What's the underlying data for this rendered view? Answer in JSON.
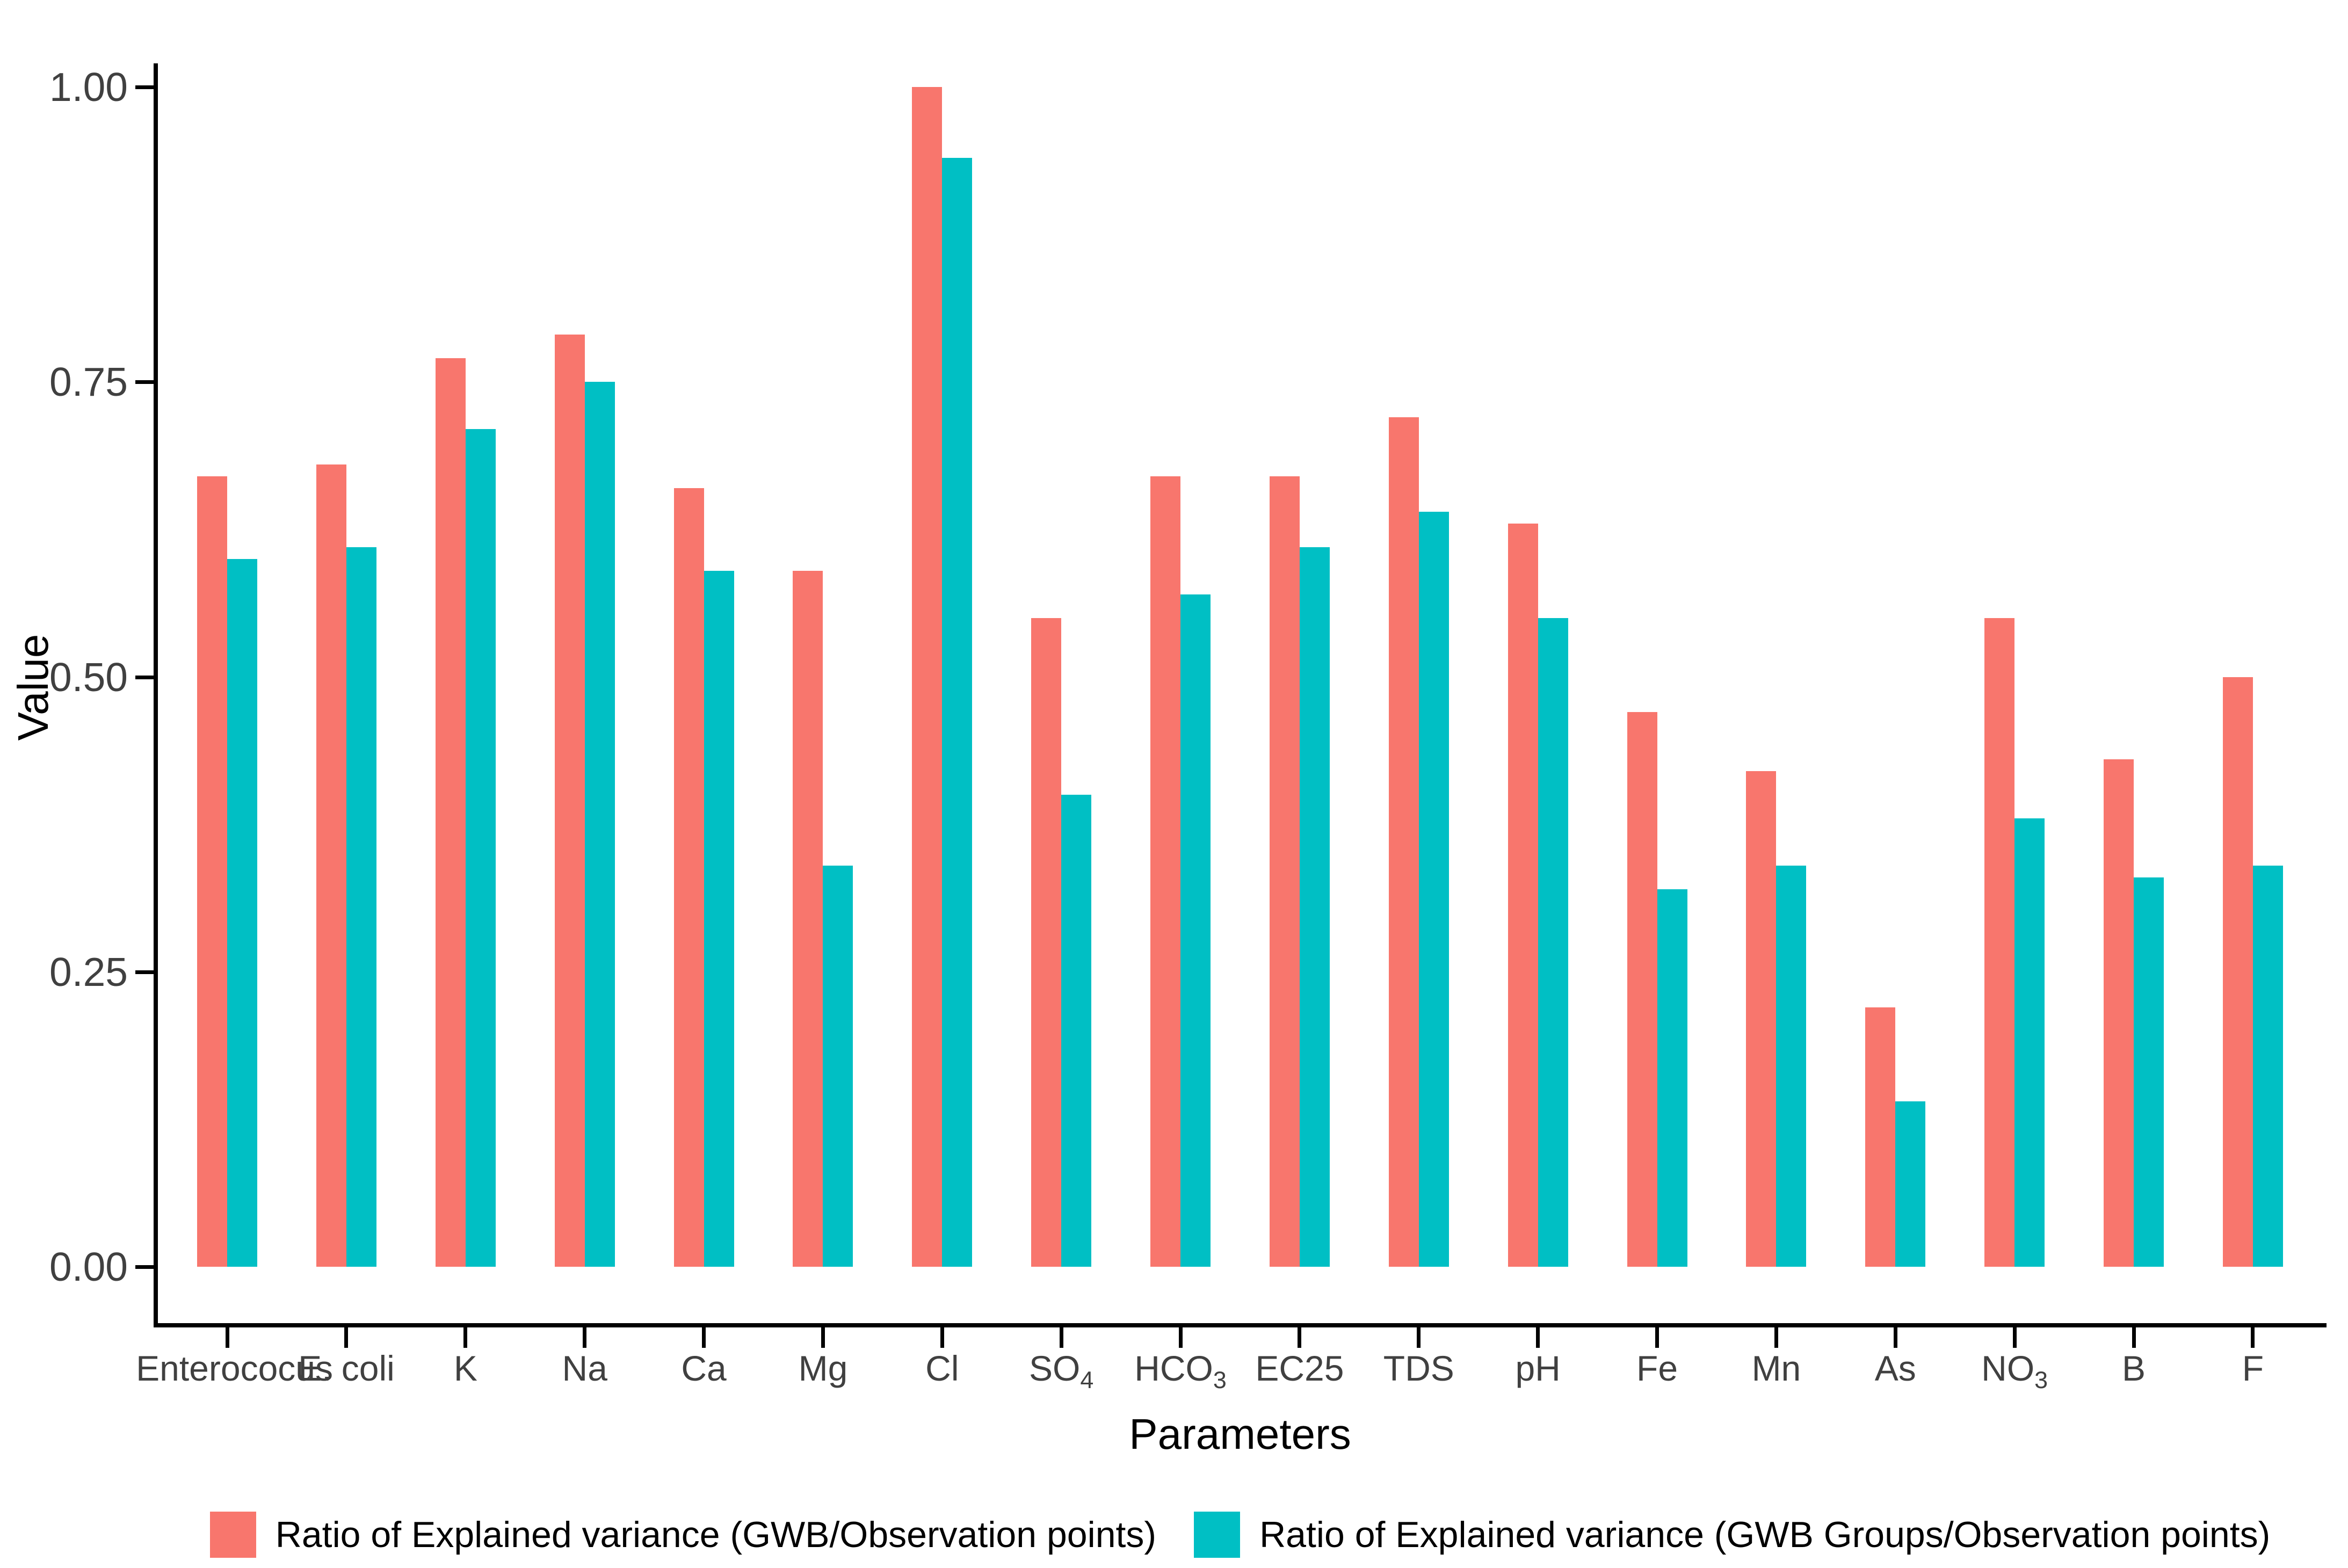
{
  "figure": {
    "background": "#ffffff",
    "axis_line_color": "#000000",
    "tick_text_color": "#404040",
    "title_text_color": "#000000"
  },
  "chart_data": {
    "type": "bar",
    "title": "",
    "xlabel": "Parameters",
    "ylabel": "Value",
    "ylim": [
      0,
      1.0
    ],
    "yticks": [
      {
        "label": "0.00",
        "value": 0.0
      },
      {
        "label": "0.25",
        "value": 0.25
      },
      {
        "label": "0.50",
        "value": 0.5
      },
      {
        "label": "0.75",
        "value": 0.75
      },
      {
        "label": "1.00",
        "value": 1.0
      }
    ],
    "categories": [
      "Enterococus",
      "E. coli",
      "K",
      "Na",
      "Ca",
      "Mg",
      "Cl",
      "SO_4",
      "HCO_3",
      "EC25",
      "TDS",
      "pH",
      "Fe",
      "Mn",
      "As",
      "NO_3",
      "B",
      "F"
    ],
    "series": [
      {
        "name": "Ratio of Explained variance (GWB/Observation points)",
        "color": "#F8766D",
        "values": [
          0.67,
          0.68,
          0.77,
          0.79,
          0.66,
          0.59,
          1.0,
          0.55,
          0.67,
          0.67,
          0.72,
          0.63,
          0.47,
          0.42,
          0.22,
          0.55,
          0.43,
          0.5
        ]
      },
      {
        "name": "Ratio of Explained variance (GWB Groups/Observation points)",
        "color": "#00BFC4",
        "values": [
          0.6,
          0.61,
          0.71,
          0.75,
          0.59,
          0.34,
          0.94,
          0.4,
          0.57,
          0.61,
          0.64,
          0.55,
          0.32,
          0.34,
          0.14,
          0.38,
          0.33,
          0.34
        ]
      }
    ],
    "legend_position": "bottom",
    "grid": false,
    "bar_orientation": "vertical"
  }
}
